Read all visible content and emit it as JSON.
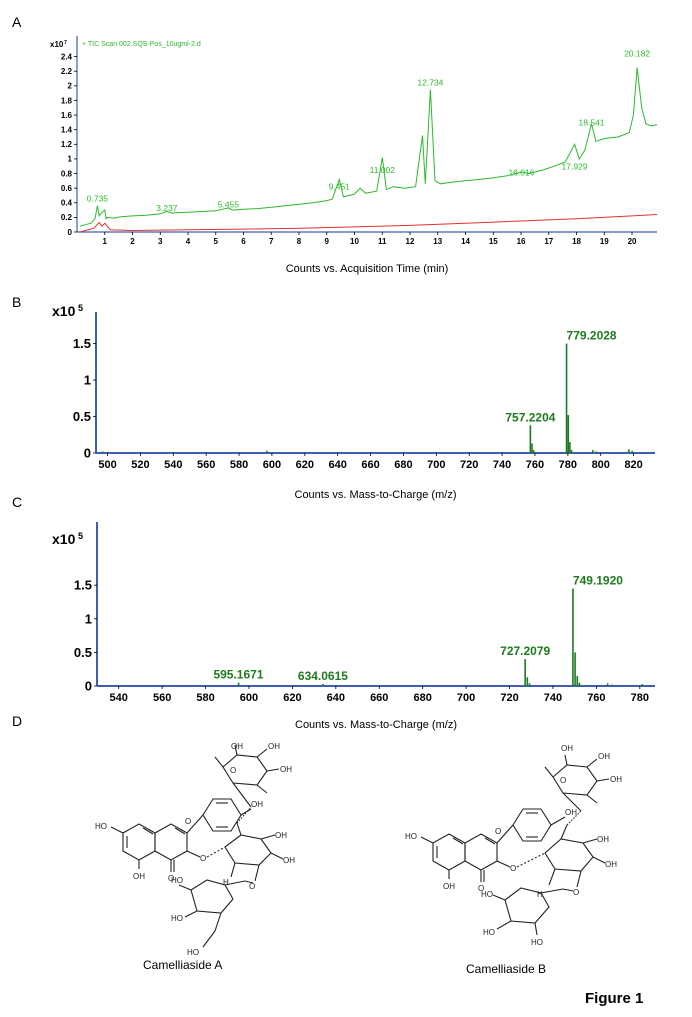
{
  "figure_label": "Figure 1",
  "panels": {
    "a": {
      "letter": "A"
    },
    "b": {
      "letter": "B"
    },
    "c": {
      "letter": "C"
    },
    "d": {
      "letter": "D"
    }
  },
  "compounds": {
    "a_name": "Camelliaside A",
    "b_name": "Camelliaside B",
    "atom_ho": "HO",
    "atom_oh": "OH",
    "atom_o": "O",
    "atom_h": "H"
  },
  "colors": {
    "tic": "#2db82d",
    "baseline": "#e33030",
    "spectrum": "#1e7a1e",
    "axis": "#3e5fb0"
  },
  "chart_data": [
    {
      "type": "line",
      "legend": "+ TIC Scan 002.SQS-Pos_10ugml-2.d",
      "xlabel": "Counts vs. Acquisition Time (min)",
      "y_multiplier": "x10",
      "y_exponent": "7",
      "xlim": [
        0,
        20.9
      ],
      "ylim": [
        0,
        2.6
      ],
      "x_ticks": [
        "1",
        "2",
        "3",
        "4",
        "5",
        "6",
        "7",
        "8",
        "9",
        "10",
        "11",
        "12",
        "13",
        "14",
        "15",
        "16",
        "17",
        "18",
        "19",
        "20"
      ],
      "y_ticks": [
        "0",
        "0.2",
        "0.4",
        "0.6",
        "0.8",
        "1",
        "1.2",
        "1.4",
        "1.6",
        "1.8",
        "2",
        "2.2",
        "2.4"
      ],
      "peak_labels": [
        {
          "x": 0.735,
          "y": 0.36,
          "text": "0.735"
        },
        {
          "x": 3.237,
          "y": 0.23,
          "text": "3.237"
        },
        {
          "x": 5.455,
          "y": 0.28,
          "text": "5.455"
        },
        {
          "x": 9.451,
          "y": 0.53,
          "text": "9.451"
        },
        {
          "x": 11.002,
          "y": 0.75,
          "text": "11.002"
        },
        {
          "x": 12.734,
          "y": 1.95,
          "text": "12.734"
        },
        {
          "x": 16.016,
          "y": 0.72,
          "text": "16.016"
        },
        {
          "x": 17.929,
          "y": 0.8,
          "text": "17.929"
        },
        {
          "x": 18.541,
          "y": 1.4,
          "text": "18.541"
        },
        {
          "x": 20.182,
          "y": 2.35,
          "text": "20.182"
        }
      ],
      "series": [
        {
          "color": "#2db82d",
          "x": [
            0.1,
            0.5,
            0.65,
            0.735,
            0.8,
            0.9,
            1.0,
            1.05,
            1.1,
            1.3,
            1.6,
            2.0,
            2.5,
            3.0,
            3.237,
            3.4,
            4.0,
            4.5,
            5.0,
            5.455,
            5.6,
            6.0,
            6.5,
            7.0,
            7.5,
            8.0,
            8.5,
            9.0,
            9.2,
            9.451,
            9.6,
            10.0,
            10.2,
            10.4,
            10.8,
            11.002,
            11.15,
            11.4,
            11.8,
            12.2,
            12.45,
            12.55,
            12.734,
            12.9,
            13.1,
            13.5,
            14.0,
            14.5,
            15.0,
            15.5,
            16.016,
            16.3,
            16.8,
            17.2,
            17.6,
            17.929,
            18.1,
            18.3,
            18.541,
            18.7,
            19.0,
            19.5,
            19.9,
            20.05,
            20.182,
            20.35,
            20.5,
            20.7,
            20.9
          ],
          "y": [
            0.08,
            0.12,
            0.18,
            0.36,
            0.22,
            0.27,
            0.3,
            0.18,
            0.2,
            0.19,
            0.21,
            0.22,
            0.23,
            0.25,
            0.28,
            0.26,
            0.27,
            0.28,
            0.29,
            0.33,
            0.3,
            0.31,
            0.32,
            0.34,
            0.36,
            0.38,
            0.4,
            0.43,
            0.45,
            0.72,
            0.48,
            0.52,
            0.6,
            0.53,
            0.56,
            1.02,
            0.58,
            0.62,
            0.6,
            0.62,
            1.32,
            0.66,
            1.95,
            0.7,
            0.66,
            0.68,
            0.7,
            0.72,
            0.74,
            0.77,
            0.82,
            0.8,
            0.85,
            0.9,
            0.96,
            1.2,
            1.0,
            1.12,
            1.48,
            1.24,
            1.28,
            1.3,
            1.36,
            1.6,
            2.25,
            1.7,
            1.48,
            1.45,
            1.47
          ]
        },
        {
          "color": "#e33030",
          "x": [
            0.1,
            0.6,
            0.8,
            0.9,
            1.0,
            1.2,
            2.0,
            4.0,
            6.0,
            8.0,
            10.0,
            12.0,
            14.0,
            16.0,
            18.0,
            20.0,
            20.9
          ],
          "y": [
            0.0,
            0.05,
            0.13,
            0.08,
            0.12,
            0.03,
            0.02,
            0.03,
            0.04,
            0.05,
            0.07,
            0.09,
            0.12,
            0.15,
            0.18,
            0.22,
            0.24
          ]
        }
      ]
    },
    {
      "type": "bar",
      "xlabel": "Counts vs. Mass-to-Charge (m/z)",
      "y_multiplier": "x10",
      "y_exponent": "5",
      "xlim": [
        493,
        833
      ],
      "ylim": [
        0,
        1.85
      ],
      "x_ticks": [
        "500",
        "520",
        "540",
        "560",
        "580",
        "600",
        "620",
        "640",
        "660",
        "680",
        "700",
        "720",
        "740",
        "760",
        "780",
        "800",
        "820"
      ],
      "y_ticks": [
        "0",
        "0.5",
        "1",
        "1.5"
      ],
      "peak_labels": [
        {
          "x": 757.2204,
          "y": 0.38,
          "text": "757.2204"
        },
        {
          "x": 779.2028,
          "y": 1.5,
          "text": "779.2028"
        }
      ],
      "mz": [
        497,
        540,
        597,
        661,
        757.2,
        758.2,
        759.2,
        779.2,
        780.2,
        781.2,
        782.2,
        795.2,
        797.2,
        817.1,
        819.1
      ],
      "intensity": [
        0.02,
        0.01,
        0.03,
        0.01,
        0.38,
        0.13,
        0.04,
        1.5,
        0.52,
        0.15,
        0.04,
        0.04,
        0.02,
        0.05,
        0.03
      ]
    },
    {
      "type": "bar",
      "xlabel": "Counts vs. Mass-to-Charge (m/z)",
      "y_multiplier": "x10",
      "y_exponent": "5",
      "xlim": [
        530,
        787
      ],
      "ylim": [
        0,
        2.35
      ],
      "x_ticks": [
        "540",
        "560",
        "580",
        "600",
        "620",
        "640",
        "660",
        "680",
        "700",
        "720",
        "740",
        "760",
        "780"
      ],
      "y_ticks": [
        "0",
        "0.5",
        "1",
        "1.5"
      ],
      "peak_labels": [
        {
          "x": 595.1671,
          "y": 0.05,
          "text": "595.1671"
        },
        {
          "x": 634.0615,
          "y": 0.03,
          "text": "634.0615"
        },
        {
          "x": 727.2079,
          "y": 0.4,
          "text": "727.2079"
        },
        {
          "x": 749.192,
          "y": 1.45,
          "text": "749.1920"
        }
      ],
      "mz": [
        595.2,
        634.1,
        727.2,
        728.2,
        729.2,
        749.2,
        750.2,
        751.2,
        752.2,
        765.2,
        767.2,
        781.1
      ],
      "intensity": [
        0.05,
        0.03,
        0.4,
        0.13,
        0.04,
        1.45,
        0.5,
        0.15,
        0.05,
        0.04,
        0.02,
        0.03
      ]
    }
  ]
}
